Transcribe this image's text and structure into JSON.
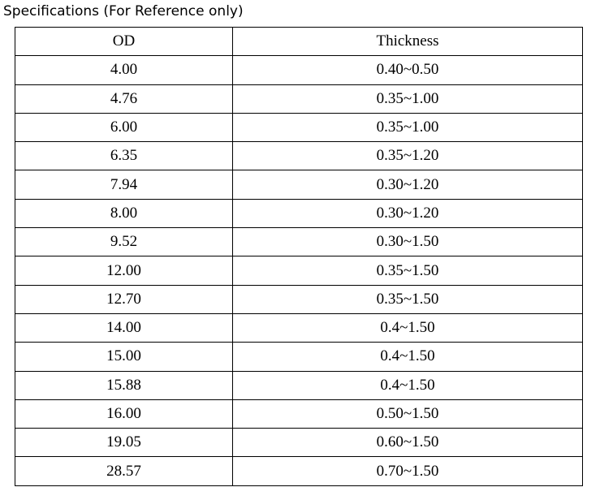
{
  "title": "Specifications (For Reference only)",
  "table": {
    "header": [
      "OD",
      "Thickness"
    ],
    "rows": [
      [
        "4.00",
        "0.40~0.50"
      ],
      [
        "4.76",
        "0.35~1.00"
      ],
      [
        "6.00",
        "0.35~1.00"
      ],
      [
        "6.35",
        "0.35~1.20"
      ],
      [
        "7.94",
        "0.30~1.20"
      ],
      [
        "8.00",
        "0.30~1.20"
      ],
      [
        "9.52",
        "0.30~1.50"
      ],
      [
        "12.00",
        "0.35~1.50"
      ],
      [
        "12.70",
        "0.35~1.50"
      ],
      [
        "14.00",
        "0.4~1.50"
      ],
      [
        "15.00",
        "0.4~1.50"
      ],
      [
        "15.88",
        "0.4~1.50"
      ],
      [
        "16.00",
        "0.50~1.50"
      ],
      [
        "19.05",
        "0.60~1.50"
      ],
      [
        "28.57",
        "0.70~1.50"
      ]
    ]
  }
}
